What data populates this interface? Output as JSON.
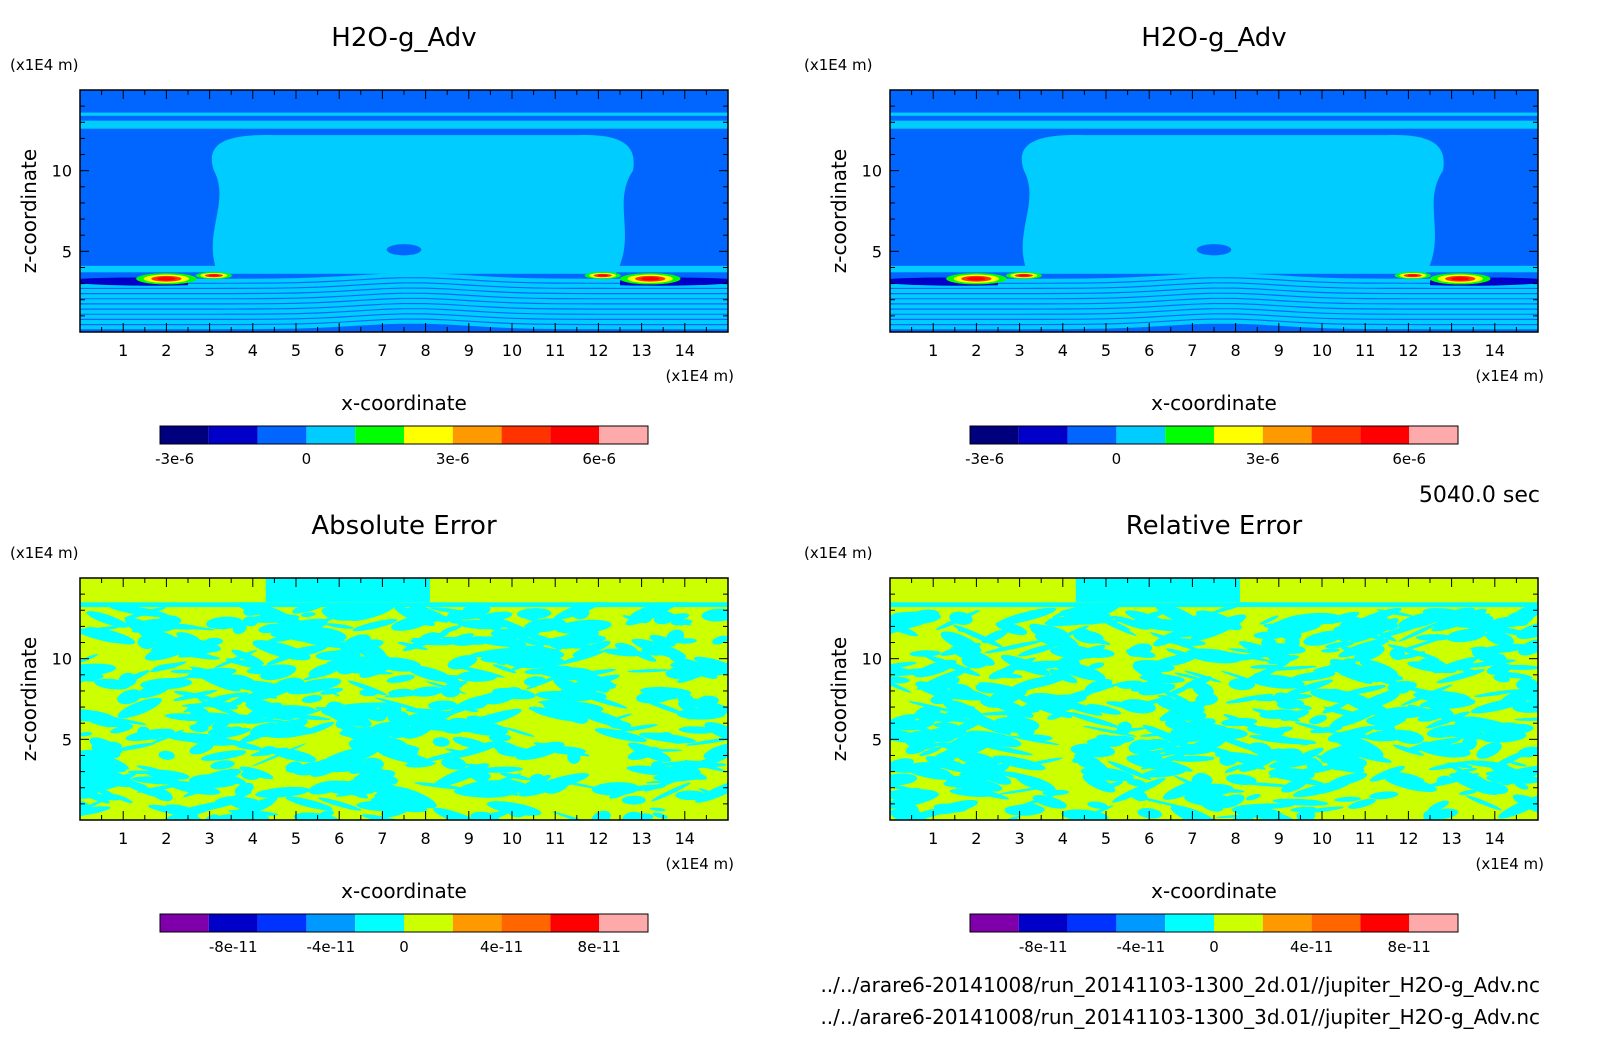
{
  "time_label": "5040.0 sec",
  "files": [
    "../../arare6-20141008/run_20141103-1300_2d.01//jupiter_H2O-g_Adv.nc",
    "../../arare6-20141008/run_20141103-1300_3d.01//jupiter_H2O-g_Adv.nc"
  ],
  "colors": {
    "field": [
      "#00007f",
      "#0000c8",
      "#0066ff",
      "#00ccff",
      "#00ff00",
      "#ffff00",
      "#ff9900",
      "#ff3300",
      "#ff0000",
      "#ffaaaa"
    ],
    "error": [
      "#7f00aa",
      "#0000c8",
      "#0033ff",
      "#0099ff",
      "#00ffff",
      "#ccff00",
      "#ff9900",
      "#ff6600",
      "#ff0000",
      "#ffaaaa"
    ]
  },
  "chart_data": [
    {
      "type": "heatmap",
      "title": "H2O-g_Adv",
      "xlabel": "x-coordinate",
      "ylabel": "z-coordinate",
      "x_unit": "(x1E4 m)",
      "y_unit": "(x1E4 m)",
      "xlim": [
        0,
        15
      ],
      "ylim": [
        0,
        15
      ],
      "x_ticks": [
        "1",
        "2",
        "3",
        "4",
        "5",
        "6",
        "7",
        "8",
        "9",
        "10",
        "11",
        "12",
        "13",
        "14"
      ],
      "y_ticks": [
        "5",
        "10"
      ],
      "colorbar_ticks": [
        "-3e-6",
        "0",
        "3e-6",
        "6e-6"
      ],
      "palette": "field"
    },
    {
      "type": "heatmap",
      "title": "H2O-g_Adv",
      "xlabel": "x-coordinate",
      "ylabel": "z-coordinate",
      "x_unit": "(x1E4 m)",
      "y_unit": "(x1E4 m)",
      "xlim": [
        0,
        15
      ],
      "ylim": [
        0,
        15
      ],
      "x_ticks": [
        "1",
        "2",
        "3",
        "4",
        "5",
        "6",
        "7",
        "8",
        "9",
        "10",
        "11",
        "12",
        "13",
        "14"
      ],
      "y_ticks": [
        "5",
        "10"
      ],
      "colorbar_ticks": [
        "-3e-6",
        "0",
        "3e-6",
        "6e-6"
      ],
      "palette": "field"
    },
    {
      "type": "heatmap",
      "title": "Absolute Error",
      "xlabel": "x-coordinate",
      "ylabel": "z-coordinate",
      "x_unit": "(x1E4 m)",
      "y_unit": "(x1E4 m)",
      "xlim": [
        0,
        15
      ],
      "ylim": [
        0,
        15
      ],
      "x_ticks": [
        "1",
        "2",
        "3",
        "4",
        "5",
        "6",
        "7",
        "8",
        "9",
        "10",
        "11",
        "12",
        "13",
        "14"
      ],
      "y_ticks": [
        "5",
        "10"
      ],
      "colorbar_ticks": [
        "-8e-11",
        "-4e-11",
        "0",
        "4e-11",
        "8e-11"
      ],
      "palette": "error"
    },
    {
      "type": "heatmap",
      "title": "Relative Error",
      "xlabel": "x-coordinate",
      "ylabel": "z-coordinate",
      "x_unit": "(x1E4 m)",
      "y_unit": "(x1E4 m)",
      "xlim": [
        0,
        15
      ],
      "ylim": [
        0,
        15
      ],
      "x_ticks": [
        "1",
        "2",
        "3",
        "4",
        "5",
        "6",
        "7",
        "8",
        "9",
        "10",
        "11",
        "12",
        "13",
        "14"
      ],
      "y_ticks": [
        "5",
        "10"
      ],
      "colorbar_ticks": [
        "-8e-11",
        "-4e-11",
        "0",
        "4e-11",
        "8e-11"
      ],
      "palette": "error"
    }
  ]
}
